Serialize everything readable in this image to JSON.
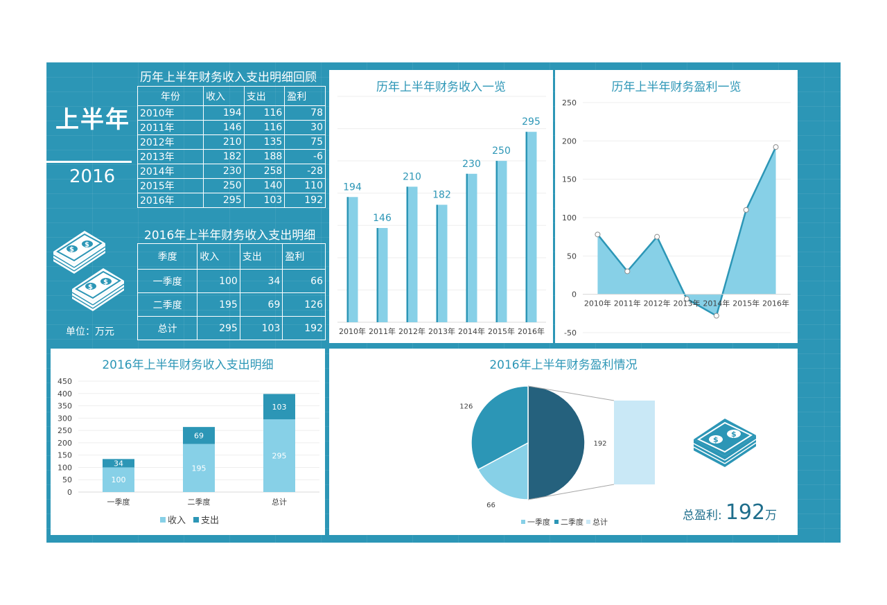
{
  "left": {
    "big_title": "上半年",
    "year": "2016",
    "unit": "单位：万元",
    "history_table": {
      "title": "历年上半年财务收入支出明细回顾",
      "headers": [
        "年份",
        "收入",
        "支出",
        "盈利"
      ],
      "rows": [
        [
          "2010年",
          "194",
          "116",
          "78"
        ],
        [
          "2011年",
          "146",
          "116",
          "30"
        ],
        [
          "2012年",
          "210",
          "135",
          "75"
        ],
        [
          "2013年",
          "182",
          "188",
          "-6"
        ],
        [
          "2014年",
          "230",
          "258",
          "-28"
        ],
        [
          "2015年",
          "250",
          "140",
          "110"
        ],
        [
          "2016年",
          "295",
          "103",
          "192"
        ]
      ]
    },
    "detail_table": {
      "title": "2016年上半年财务收入支出明细",
      "headers": [
        "季度",
        "收入",
        "支出",
        "盈利"
      ],
      "rows": [
        [
          "一季度",
          "100",
          "34",
          "66"
        ],
        [
          "二季度",
          "195",
          "69",
          "126"
        ],
        [
          "总计",
          "295",
          "103",
          "192"
        ]
      ]
    }
  },
  "total": {
    "label": "总盈利:",
    "value": "192",
    "unit": "万"
  },
  "colors": {
    "background": "#2c96b6",
    "light": "#87d0e7",
    "mid": "#2c96b6",
    "dark": "#25617d",
    "pale": "#c9e8f6"
  },
  "chart_data": [
    {
      "type": "bar",
      "title": "历年上半年财务收入一览",
      "categories": [
        "2010年",
        "2011年",
        "2012年",
        "2013年",
        "2014年",
        "2015年",
        "2016年"
      ],
      "values": [
        194,
        146,
        210,
        182,
        230,
        250,
        295
      ],
      "ylim": [
        0,
        350
      ],
      "grid": true
    },
    {
      "type": "area",
      "title": "历年上半年财务盈利一览",
      "categories": [
        "2010年",
        "2011年",
        "2012年",
        "2013年",
        "2014年",
        "2015年",
        "2016年"
      ],
      "values": [
        78,
        30,
        75,
        -6,
        -28,
        110,
        192
      ],
      "ylim": [
        -50,
        250
      ],
      "yticks": [
        "-50",
        "0",
        "50",
        "100",
        "150",
        "200",
        "250"
      ],
      "grid": true
    },
    {
      "type": "bar",
      "stacked": true,
      "title": "2016年上半年财务收入支出明细",
      "categories": [
        "一季度",
        "二季度",
        "总计"
      ],
      "series": [
        {
          "name": "收入",
          "values": [
            100,
            195,
            295
          ]
        },
        {
          "name": "支出",
          "values": [
            34,
            69,
            103
          ]
        }
      ],
      "ylim": [
        0,
        450
      ],
      "yticks": [
        "0",
        "50",
        "100",
        "150",
        "200",
        "250",
        "300",
        "350",
        "400",
        "450"
      ],
      "legend": "bottom",
      "grid": true
    },
    {
      "type": "pie",
      "title": "2016年上半年财务盈利情况",
      "labels": [
        "一季度",
        "二季度",
        "总计"
      ],
      "values": [
        66,
        126,
        192
      ],
      "value_labels": [
        "66",
        "126",
        "192"
      ],
      "legend": "bottom"
    }
  ]
}
